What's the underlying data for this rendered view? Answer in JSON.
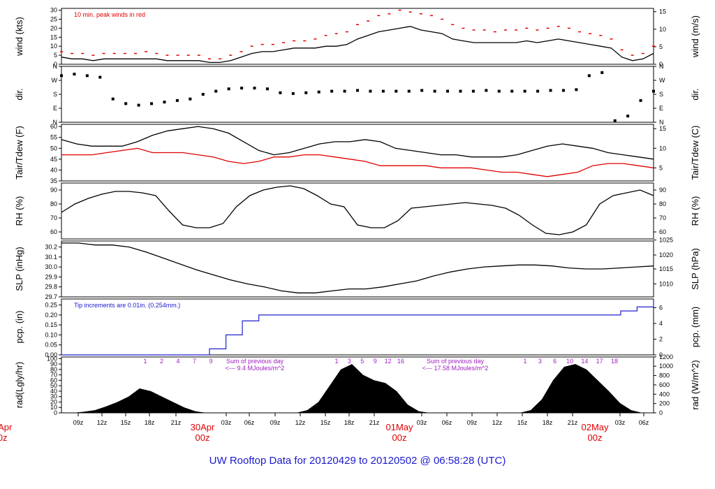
{
  "title": "UW Rooftop Data for 20120429  to  20120502 @ 06:58:28  (UTC)",
  "chart_data": {
    "type": "line",
    "x_time_labels": [
      "09z",
      "12z",
      "15z",
      "18z",
      "21z",
      "03z",
      "06z",
      "09z",
      "12z",
      "15z",
      "18z",
      "21z",
      "03z",
      "06z",
      "09z",
      "12z",
      "15z",
      "18z",
      "21z",
      "03z",
      "06z"
    ],
    "day_labels": [
      {
        "label": "29Apr",
        "sub": "00z"
      },
      {
        "label": "30Apr",
        "sub": "00z"
      },
      {
        "label": "01May",
        "sub": "00z"
      },
      {
        "label": "02May",
        "sub": "00z"
      }
    ],
    "panels": [
      {
        "id": "wind",
        "ylabel_left": "wind (kts)",
        "ylabel_right": "wind (m/s)",
        "left_ticks": [
          "0",
          "5",
          "10",
          "15",
          "20",
          "25",
          "30"
        ],
        "right_ticks": [
          "0",
          "5",
          "10",
          "15"
        ],
        "annotation": "10 min. peak winds in red",
        "series": [
          {
            "color": "#000000",
            "values": [
              4,
              3,
              3,
              2,
              3,
              3,
              3,
              3,
              3,
              3,
              2,
              2,
              2,
              2,
              1,
              1,
              2,
              4,
              6,
              7,
              7,
              8,
              9,
              9,
              9,
              10,
              10,
              11,
              14,
              16,
              18,
              19,
              20,
              21,
              19,
              18,
              17,
              14,
              13,
              12,
              12,
              12,
              12,
              12,
              13,
              12,
              13,
              14,
              13,
              12,
              11,
              10,
              9,
              4,
              2,
              3,
              6
            ]
          },
          {
            "color": "#e00000",
            "values": [
              7,
              6,
              6,
              5,
              6,
              6,
              6,
              6,
              7,
              6,
              5,
              5,
              5,
              5,
              3,
              3,
              5,
              7,
              10,
              11,
              11,
              12,
              13,
              13,
              14,
              16,
              17,
              18,
              22,
              24,
              27,
              28,
              30,
              29,
              28,
              27,
              25,
              22,
              20,
              19,
              19,
              18,
              19,
              19,
              20,
              19,
              20,
              21,
              20,
              18,
              17,
              16,
              14,
              8,
              5,
              6,
              10
            ]
          }
        ]
      },
      {
        "id": "dir",
        "ylabel_left": "dir.",
        "ylabel_right": "dir.",
        "left_ticks": [
          "N",
          "E",
          "S",
          "W",
          "N"
        ],
        "right_ticks": [
          "N",
          "E",
          "S",
          "W",
          "N"
        ],
        "series": [
          {
            "color": "#000000",
            "values": [
              300,
              310,
              300,
              290,
              150,
              120,
              110,
              120,
              130,
              140,
              150,
              180,
              200,
              215,
              220,
              220,
              215,
              190,
              185,
              190,
              195,
              200,
              200,
              205,
              200,
              200,
              200,
              200,
              205,
              200,
              200,
              200,
              200,
              205,
              200,
              200,
              200,
              200,
              205,
              205,
              210,
              300,
              320,
              10,
              40,
              140,
              200
            ]
          }
        ]
      },
      {
        "id": "temp",
        "ylabel_left": "Tair/Tdew (F)",
        "ylabel_right": "Tair/Tdew (C)",
        "left_ticks": [
          "35",
          "40",
          "45",
          "50",
          "55",
          "60"
        ],
        "right_ticks": [
          "5",
          "10",
          "15"
        ],
        "series": [
          {
            "color": "#000000",
            "values": [
              54,
              52,
              51,
              51,
              51,
              53,
              56,
              58,
              59,
              60,
              59,
              57,
              53,
              49,
              47,
              48,
              50,
              52,
              53,
              53,
              54,
              53,
              50,
              49,
              48,
              47,
              47,
              46,
              46,
              46,
              47,
              49,
              51,
              52,
              51,
              50,
              48,
              47,
              46,
              45
            ]
          },
          {
            "color": "#e00000",
            "values": [
              47,
              47,
              47,
              48,
              49,
              50,
              48,
              48,
              48,
              47,
              46,
              44,
              43,
              44,
              46,
              46,
              47,
              47,
              46,
              45,
              44,
              42,
              42,
              42,
              42,
              41,
              41,
              41,
              40,
              39,
              39,
              38,
              37,
              38,
              39,
              42,
              43,
              43,
              42,
              41
            ]
          }
        ]
      },
      {
        "id": "rh",
        "ylabel_left": "RH (%)",
        "ylabel_right": "RH (%)",
        "left_ticks": [
          "60",
          "70",
          "80",
          "90"
        ],
        "right_ticks": [
          "60",
          "70",
          "80",
          "90"
        ],
        "series": [
          {
            "color": "#000000",
            "values": [
              74,
              80,
              84,
              87,
              89,
              89,
              88,
              86,
              75,
              65,
              63,
              63,
              66,
              78,
              86,
              90,
              92,
              93,
              91,
              86,
              80,
              78,
              65,
              63,
              63,
              68,
              77,
              78,
              79,
              80,
              81,
              80,
              79,
              77,
              72,
              65,
              59,
              58,
              60,
              65,
              80,
              86,
              88,
              90,
              86
            ]
          }
        ]
      },
      {
        "id": "slp",
        "ylabel_left": "SLP (inHg)",
        "ylabel_right": "SLP (hPa)",
        "left_ticks": [
          "29.7",
          "29.8",
          "29.9",
          "30.0",
          "30.1",
          "30.2"
        ],
        "right_ticks": [
          "1010",
          "1015",
          "1020",
          "1025"
        ],
        "series": [
          {
            "color": "#000000",
            "values": [
              30.24,
              30.24,
              30.22,
              30.22,
              30.2,
              30.15,
              30.09,
              30.03,
              29.97,
              29.92,
              29.87,
              29.83,
              29.8,
              29.76,
              29.74,
              29.74,
              29.76,
              29.78,
              29.78,
              29.8,
              29.83,
              29.86,
              29.91,
              29.95,
              29.98,
              30.0,
              30.01,
              30.02,
              30.02,
              30.01,
              29.99,
              29.98,
              29.98,
              29.99,
              30.0,
              30.01
            ]
          }
        ]
      },
      {
        "id": "pcp",
        "ylabel_left": "pcp. (in)",
        "ylabel_right": "pcp. (mm)",
        "left_ticks": [
          "0.00",
          "0.05",
          "0.10",
          "0.15",
          "0.20",
          "0.25"
        ],
        "right_ticks": [
          "0",
          "2",
          "4",
          "6"
        ],
        "annotation": "Tip increments are 0.01in. (0.254mm.)",
        "series": [
          {
            "color": "#2020cc",
            "values": [
              0,
              0,
              0,
              0,
              0,
              0,
              0,
              0,
              0,
              0.03,
              0.1,
              0.17,
              0.2,
              0.2,
              0.2,
              0.2,
              0.2,
              0.2,
              0.2,
              0.2,
              0.2,
              0.2,
              0.2,
              0.2,
              0.2,
              0.2,
              0.2,
              0.2,
              0.2,
              0.2,
              0.2,
              0.2,
              0.2,
              0.2,
              0.22,
              0.24,
              0.27
            ]
          }
        ]
      },
      {
        "id": "rad",
        "ylabel_left": "rad(Lgly/hr)",
        "ylabel_right": "rad (W/m^2)",
        "left_ticks": [
          "0",
          "10",
          "20",
          "30",
          "40",
          "50",
          "60",
          "70",
          "80",
          "90",
          "100"
        ],
        "right_ticks": [
          "0",
          "200",
          "400",
          "600",
          "800",
          "1000",
          "1200"
        ],
        "notes": [
          {
            "text": "Sum of previous day"
          },
          {
            "text": "<--- 9.4 MJoules/m^2"
          },
          {
            "text": "Sum of previous day"
          },
          {
            "text": "<--- 17.58 MJoules/m^2"
          }
        ],
        "tick_numbers_day1": [
          "1",
          "2",
          "4",
          "7",
          "9"
        ],
        "tick_numbers_day2": [
          "1",
          "3",
          "5",
          "9",
          "12",
          "16"
        ],
        "tick_numbers_day3": [
          "1",
          "3",
          "6",
          "10",
          "14",
          "17",
          "18"
        ],
        "series": [
          {
            "color": "#000000",
            "values": [
              0,
              0,
              2,
              5,
              12,
              20,
              30,
              45,
              40,
              30,
              20,
              10,
              3,
              0,
              0,
              0,
              0,
              0,
              0,
              0,
              0,
              0,
              5,
              20,
              50,
              80,
              90,
              70,
              60,
              55,
              40,
              15,
              3,
              0,
              0,
              0,
              0,
              0,
              0,
              0,
              0,
              0,
              5,
              25,
              60,
              85,
              90,
              80,
              60,
              40,
              18,
              5,
              0,
              0
            ]
          }
        ]
      }
    ]
  }
}
